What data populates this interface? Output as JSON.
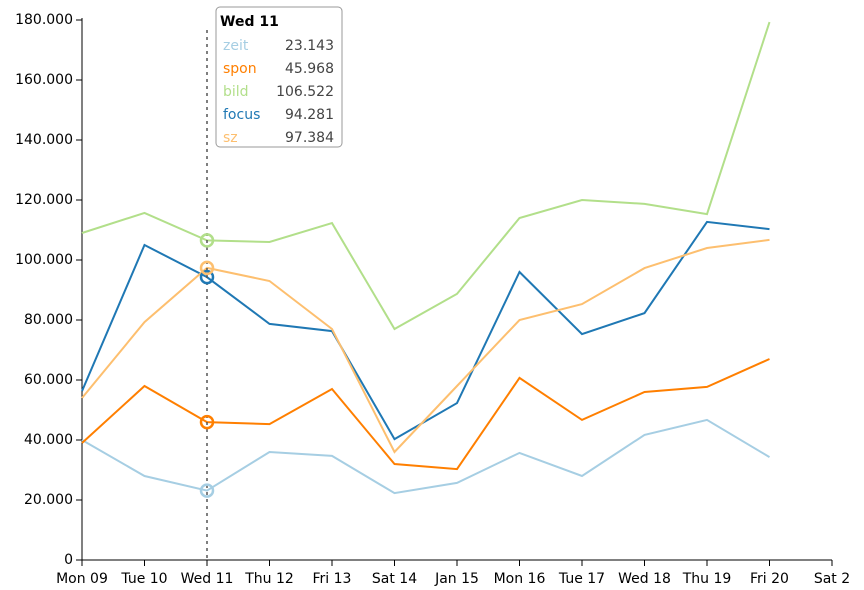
{
  "chart_data": {
    "type": "line",
    "categories": [
      "Mon 09",
      "Tue 10",
      "Wed 11",
      "Thu 12",
      "Fri 13",
      "Sat 14",
      "Jan 15",
      "Mon 16",
      "Tue 17",
      "Wed 18",
      "Thu 19",
      "Fri 20",
      "Sat 2"
    ],
    "ylim": [
      0,
      180000
    ],
    "yticks": [
      0,
      {
        "value": 20000,
        "label": "20.000"
      },
      {
        "value": 40000,
        "label": "40.000"
      },
      {
        "value": 60000,
        "label": "60.000"
      },
      {
        "value": 80000,
        "label": "80.000"
      },
      {
        "value": 100000,
        "label": "100.000"
      },
      {
        "value": 120000,
        "label": "120.000"
      },
      {
        "value": 140000,
        "label": "140.000"
      },
      {
        "value": 160000,
        "label": "160.000"
      },
      {
        "value": 180000,
        "label": "180.000"
      }
    ],
    "series": [
      {
        "name": "zeit",
        "color": "#a6cee3",
        "values": [
          40000,
          28000,
          23143,
          36000,
          34700,
          22300,
          25700,
          35700,
          28000,
          41700,
          46700,
          34300,
          null
        ],
        "value_labels": [
          null,
          null,
          "23.143",
          null,
          null,
          null,
          null,
          null,
          null,
          null,
          null,
          null,
          null
        ]
      },
      {
        "name": "spon",
        "color": "#ff7f00",
        "values": [
          39000,
          58000,
          45968,
          45300,
          57000,
          32000,
          30300,
          60700,
          46700,
          56000,
          57700,
          67000,
          null
        ],
        "value_labels": [
          null,
          null,
          "45.968",
          null,
          null,
          null,
          null,
          null,
          null,
          null,
          null,
          null,
          null
        ]
      },
      {
        "name": "bild",
        "color": "#b2df8a",
        "values": [
          109000,
          115700,
          106522,
          106000,
          112300,
          77000,
          88700,
          114000,
          120000,
          118700,
          115300,
          179300,
          null
        ],
        "value_labels": [
          null,
          null,
          "106.522",
          null,
          null,
          null,
          null,
          null,
          null,
          null,
          null,
          null,
          null
        ]
      },
      {
        "name": "focus",
        "color": "#1f78b4",
        "values": [
          56300,
          105000,
          94281,
          78700,
          76300,
          40300,
          52300,
          96000,
          75300,
          82300,
          112700,
          110300,
          null
        ],
        "value_labels": [
          null,
          null,
          "94.281",
          null,
          null,
          null,
          null,
          null,
          null,
          null,
          null,
          null,
          null
        ]
      },
      {
        "name": "sz",
        "color": "#fdbf6f",
        "values": [
          54000,
          79300,
          97384,
          93000,
          77000,
          36000,
          58000,
          80000,
          85300,
          97300,
          104000,
          106700,
          null
        ],
        "value_labels": [
          null,
          null,
          "97.384",
          null,
          null,
          null,
          null,
          null,
          null,
          null,
          null,
          null,
          null
        ]
      }
    ]
  }
}
